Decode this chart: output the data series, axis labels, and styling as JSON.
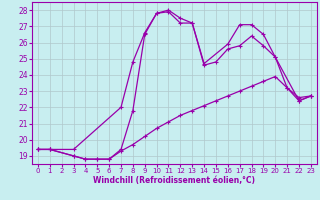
{
  "xlabel": "Windchill (Refroidissement éolien,°C)",
  "bg_color": "#c8eef0",
  "grid_color": "#b0c8cc",
  "line_color": "#9900aa",
  "xlim": [
    -0.5,
    23.5
  ],
  "ylim": [
    18.5,
    28.5
  ],
  "yticks": [
    19,
    20,
    21,
    22,
    23,
    24,
    25,
    26,
    27,
    28
  ],
  "xticks": [
    0,
    1,
    2,
    3,
    4,
    5,
    6,
    7,
    8,
    9,
    10,
    11,
    12,
    13,
    14,
    15,
    16,
    17,
    18,
    19,
    20,
    21,
    22,
    23
  ],
  "line1_x": [
    0,
    1,
    3,
    7,
    8,
    9,
    10,
    11,
    12,
    13,
    14,
    16,
    17,
    18,
    19,
    20,
    22,
    23
  ],
  "line1_y": [
    19.4,
    19.4,
    19.4,
    22.0,
    24.8,
    26.6,
    27.8,
    27.9,
    27.2,
    27.2,
    24.7,
    25.9,
    27.1,
    27.1,
    26.5,
    25.1,
    22.4,
    22.7
  ],
  "line2_x": [
    0,
    1,
    3,
    4,
    5,
    6,
    7,
    8,
    9,
    10,
    11,
    12,
    13,
    14,
    15,
    16,
    17,
    18,
    19,
    20,
    21,
    22,
    23
  ],
  "line2_y": [
    19.4,
    19.4,
    19.0,
    18.8,
    18.8,
    18.8,
    19.4,
    21.8,
    26.5,
    27.8,
    28.0,
    27.5,
    27.2,
    24.6,
    24.8,
    25.6,
    25.8,
    26.4,
    25.8,
    25.1,
    23.2,
    22.4,
    22.7
  ],
  "line3_x": [
    0,
    1,
    3,
    4,
    5,
    6,
    7,
    8,
    9,
    10,
    11,
    12,
    13,
    14,
    15,
    16,
    17,
    18,
    19,
    20,
    21,
    22,
    23
  ],
  "line3_y": [
    19.4,
    19.4,
    19.0,
    18.8,
    18.8,
    18.8,
    19.3,
    19.7,
    20.2,
    20.7,
    21.1,
    21.5,
    21.8,
    22.1,
    22.4,
    22.7,
    23.0,
    23.3,
    23.6,
    23.9,
    23.2,
    22.6,
    22.7
  ]
}
